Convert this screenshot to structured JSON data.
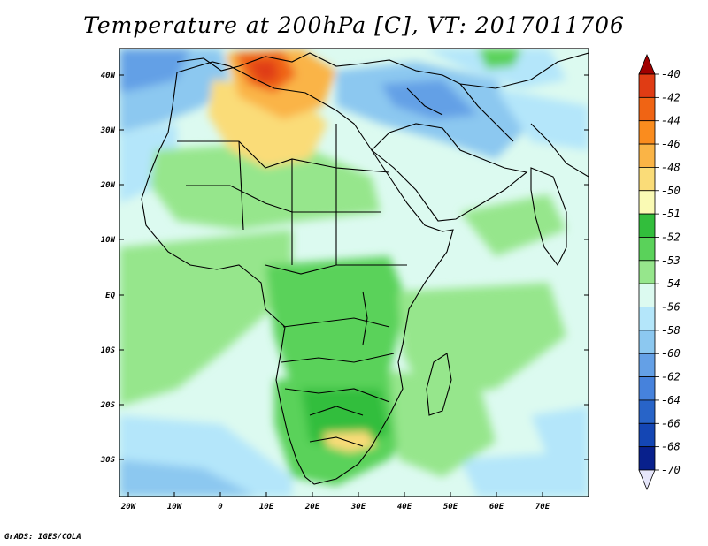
{
  "title": "Temperature at 200hPa [C], VT: 2017011706",
  "credit": "GrADS: IGES/COLA",
  "lat_labels": [
    "40N",
    "30N",
    "20N",
    "10N",
    "EQ",
    "10S",
    "20S",
    "30S"
  ],
  "lon_labels": [
    "20W",
    "10W",
    "0",
    "10E",
    "20E",
    "30E",
    "40E",
    "50E",
    "60E",
    "70E"
  ],
  "colorbar": {
    "labels": [
      "-40",
      "-42",
      "-44",
      "-46",
      "-48",
      "-50",
      "-51",
      "-52",
      "-53",
      "-54",
      "-56",
      "-58",
      "-60",
      "-62",
      "-64",
      "-66",
      "-68",
      "-70"
    ],
    "colors": [
      "#a00000",
      "#e03c14",
      "#f06414",
      "#fa8c1e",
      "#fab446",
      "#fadc78",
      "#fafab4",
      "#32be3c",
      "#5ad25a",
      "#96e68c",
      "#dcfaf0",
      "#b4e6fa",
      "#8cc8f0",
      "#64a0e6",
      "#4682dc",
      "#2864c8",
      "#1446b4",
      "#08208c",
      "#000064"
    ],
    "lower_arrow": "#e6e6fa"
  },
  "map": {
    "ocean_color": "#dcfaf0",
    "region": "Africa",
    "lon_range": [
      -22,
      80
    ],
    "lat_range": [
      -37,
      45
    ]
  }
}
